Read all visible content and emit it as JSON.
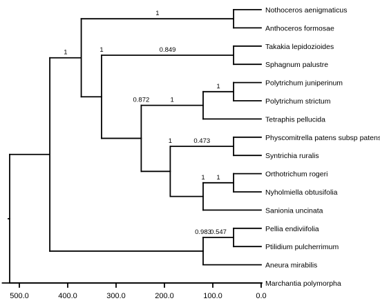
{
  "tree": {
    "root": {
      "h": 520,
      "children": [
        {
          "h": 437,
          "children": [
            {
              "h": 437,
              "support": "1",
              "children": [
                {
                  "h": 372,
                  "children": [
                    {
                      "h": 372,
                      "support": "1",
                      "children": [
                        {
                          "h": 57,
                          "children": [
                            {
                              "h": 0,
                              "taxon": "Nothoceros aenigmaticus"
                            },
                            {
                              "h": 0,
                              "taxon": "Anthoceros formosae"
                            }
                          ]
                        }
                      ]
                    },
                    {
                      "h": 330,
                      "support": "1",
                      "children": [
                        {
                          "h": 330,
                          "support": "0.849",
                          "children": [
                            {
                              "h": 57,
                              "children": [
                                {
                                  "h": 0,
                                  "taxon": "Takakia lepidozioides"
                                },
                                {
                                  "h": 0,
                                  "taxon": "Sphagnum palustre"
                                }
                              ]
                            }
                          ]
                        },
                        {
                          "h": 248,
                          "support": "0.872",
                          "children": [
                            {
                              "h": 248,
                              "support": "1",
                              "children": [
                                {
                                  "h": 120,
                                  "support": "1",
                                  "children": [
                                    {
                                      "h": 57,
                                      "children": [
                                        {
                                          "h": 0,
                                          "taxon": "Polytrichum juniperinum"
                                        },
                                        {
                                          "h": 0,
                                          "taxon": "Polytrichum strictum"
                                        }
                                      ]
                                    },
                                    {
                                      "h": 0,
                                      "taxon": "Tetraphis pellucida"
                                    }
                                  ]
                                }
                              ]
                            },
                            {
                              "h": 188,
                              "support": "1",
                              "children": [
                                {
                                  "h": 188,
                                  "support": "0.473",
                                  "children": [
                                    {
                                      "h": 57,
                                      "children": [
                                        {
                                          "h": 0,
                                          "taxon": "Physcomitrella patens subsp patens"
                                        },
                                        {
                                          "h": 0,
                                          "taxon": "Syntrichia ruralis"
                                        }
                                      ]
                                    }
                                  ]
                                },
                                {
                                  "h": 120,
                                  "support": "1",
                                  "children": [
                                    {
                                      "h": 120,
                                      "support": "1",
                                      "children": [
                                        {
                                          "h": 57,
                                          "children": [
                                            {
                                              "h": 0,
                                              "taxon": "Orthotrichum rogeri"
                                            },
                                            {
                                              "h": 0,
                                              "taxon": "Nyholmiella obtusifolia"
                                            }
                                          ]
                                        }
                                      ]
                                    },
                                    {
                                      "h": 0,
                                      "taxon": "Sanionia uncinata"
                                    }
                                  ]
                                }
                              ]
                            }
                          ]
                        }
                      ]
                    }
                  ]
                }
              ]
            },
            {
              "h": 120,
              "support": "0.983",
              "children": [
                {
                  "h": 120,
                  "support": "0.547",
                  "children": [
                    {
                      "h": 57,
                      "children": [
                        {
                          "h": 0,
                          "taxon": "Pellia endiviifolia"
                        },
                        {
                          "h": 0,
                          "taxon": "Ptilidium pulcherrimum"
                        }
                      ]
                    }
                  ]
                },
                {
                  "h": 0,
                  "taxon": "Aneura mirabilis"
                }
              ]
            }
          ]
        },
        {
          "h": 0,
          "taxon": "Marchantia polymorpha"
        }
      ]
    }
  },
  "axis": {
    "ticks": [
      {
        "value": 500,
        "label": "500.0"
      },
      {
        "value": 400,
        "label": "400.0"
      },
      {
        "value": 300,
        "label": "300.0"
      },
      {
        "value": 200,
        "label": "200.0"
      },
      {
        "value": 100,
        "label": "100.0"
      },
      {
        "value": 0,
        "label": "0.0"
      }
    ],
    "range": [
      535,
      0
    ]
  }
}
